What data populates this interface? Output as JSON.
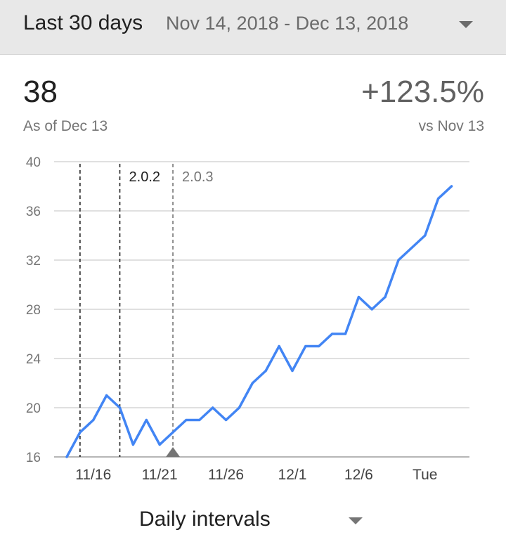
{
  "header": {
    "range_label": "Last 30 days",
    "date_range": "Nov 14, 2018 - Dec 13, 2018"
  },
  "metric": {
    "value": "38",
    "as_of": "As of Dec 13",
    "change": "+123.5%",
    "compare": "vs Nov 13"
  },
  "footer": {
    "interval_label": "Daily intervals"
  },
  "colors": {
    "line": "#4285f4",
    "grid": "#e0e0e0",
    "axis_text": "#757575"
  },
  "chart_data": {
    "type": "line",
    "x_dates": [
      "2018-11-14",
      "2018-11-15",
      "2018-11-16",
      "2018-11-17",
      "2018-11-18",
      "2018-11-19",
      "2018-11-20",
      "2018-11-21",
      "2018-11-22",
      "2018-11-23",
      "2018-11-24",
      "2018-11-25",
      "2018-11-26",
      "2018-11-27",
      "2018-11-28",
      "2018-11-29",
      "2018-11-30",
      "2018-12-01",
      "2018-12-02",
      "2018-12-03",
      "2018-12-04",
      "2018-12-05",
      "2018-12-06",
      "2018-12-07",
      "2018-12-08",
      "2018-12-09",
      "2018-12-10",
      "2018-12-11",
      "2018-12-12",
      "2018-12-13"
    ],
    "series": [
      {
        "values": [
          16,
          18,
          19,
          21,
          20,
          17,
          19,
          17,
          18,
          19,
          19,
          20,
          19,
          20,
          22,
          23,
          25,
          23,
          25,
          25,
          26,
          26,
          29,
          28,
          29,
          32,
          33,
          34,
          37,
          38
        ]
      }
    ],
    "ylim": [
      16,
      40
    ],
    "y_ticks": [
      16,
      20,
      24,
      28,
      32,
      36,
      40
    ],
    "x_ticks": [
      {
        "date": "2018-11-16",
        "label": "11/16"
      },
      {
        "date": "2018-11-21",
        "label": "11/21"
      },
      {
        "date": "2018-11-26",
        "label": "11/26"
      },
      {
        "date": "2018-12-01",
        "label": "12/1"
      },
      {
        "date": "2018-12-06",
        "label": "12/6"
      },
      {
        "date": "2018-12-11",
        "label": "Tue"
      }
    ],
    "annotations": [
      {
        "type": "vline",
        "date": "2018-11-15",
        "label": ""
      },
      {
        "type": "vline",
        "date": "2018-11-18",
        "label": "2.0.2",
        "color": "#212121"
      },
      {
        "type": "vline",
        "date": "2018-11-22",
        "label": "2.0.3",
        "color": "#757575",
        "marker": "triangle"
      }
    ],
    "grid": true
  }
}
